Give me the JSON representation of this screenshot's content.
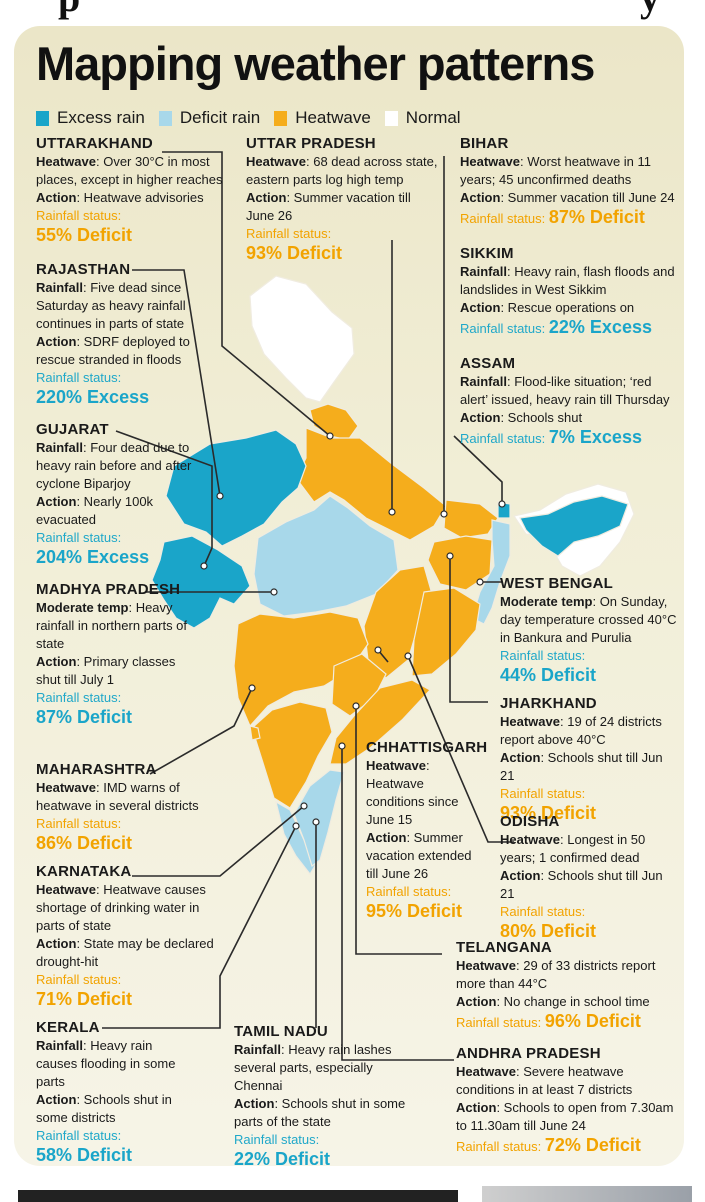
{
  "title": "Mapping weather patterns",
  "legend": [
    {
      "label": "Excess rain",
      "color": "#1aa5c9"
    },
    {
      "label": "Deficit rain",
      "color": "#a8d8ea"
    },
    {
      "label": "Heatwave",
      "color": "#f5ad1c"
    },
    {
      "label": "Normal",
      "color": "#ffffff"
    }
  ],
  "colors": {
    "excess": "#1aa5c9",
    "deficit_rain": "#a8d8ea",
    "heatwave": "#f5ad1c",
    "normal": "#ffffff"
  },
  "states": {
    "uttarakhand": {
      "name": "UTTARAKHAND",
      "l1k": "Heatwave",
      "l1v": ": Over 30°C in most places, except in higher reaches",
      "l2k": "Action",
      "l2v": ": Heatwave advisories",
      "rlabel": "Rainfall status:",
      "status": "55% Deficit"
    },
    "rajasthan": {
      "name": "RAJASTHAN",
      "l1k": "Rainfall",
      "l1v": ": Five dead since Saturday as heavy rainfall continues in parts of state",
      "l2k": "Action",
      "l2v": ": SDRF deployed to rescue stranded in floods",
      "rlabel": "Rainfall status:",
      "status": "220% Excess"
    },
    "gujarat": {
      "name": "GUJARAT",
      "l1k": "Rainfall",
      "l1v": ": Four dead due to heavy rain before and after cyclone Biparjoy",
      "l2k": "Action",
      "l2v": ": Nearly 100k evacuated",
      "rlabel": "Rainfall status:",
      "status": "204% Excess"
    },
    "madhya_pradesh": {
      "name": "MADHYA PRADESH",
      "l1k": "Moderate temp",
      "l1v": ": Heavy rainfall in northern parts of state",
      "l2k": "Action",
      "l2v": ": Primary classes shut till July 1",
      "rlabel": "Rainfall status:",
      "status": "87% Deficit"
    },
    "maharashtra": {
      "name": "MAHARASHTRA",
      "l1k": "Heatwave",
      "l1v": ": IMD warns of heatwave in several districts",
      "rlabel": "Rainfall status:",
      "status": "86% Deficit"
    },
    "karnataka": {
      "name": "KARNATAKA",
      "l1k": "Heatwave",
      "l1v": ": Heatwave causes shortage of drinking water in parts of state",
      "l2k": "Action",
      "l2v": ": State may be declared drought-hit",
      "rlabel": "Rainfall status:",
      "status": "71% Deficit"
    },
    "kerala": {
      "name": "KERALA",
      "l1k": "Rainfall",
      "l1v": ": Heavy rain causes flooding in some parts",
      "l2k": "Action",
      "l2v": ": Schools shut in some districts",
      "rlabel": "Rainfall status:",
      "status": "58% Deficit"
    },
    "uttar_pradesh": {
      "name": "UTTAR PRADESH",
      "l1k": "Heatwave",
      "l1v": ": 68 dead across state, eastern parts log high temp",
      "l2k": "Action",
      "l2v": ": Summer vacation till June 26",
      "rlabel": "Rainfall status:",
      "status": "93% Deficit"
    },
    "bihar": {
      "name": "BIHAR",
      "l1k": "Heatwave",
      "l1v": ": Worst heatwave in 11 years; 45 unconfirmed deaths",
      "l2k": "Action",
      "l2v": ": Summer vacation till June 24",
      "rlabel": "Rainfall status:",
      "status": "87% Deficit"
    },
    "sikkim": {
      "name": "SIKKIM",
      "l1k": "Rainfall",
      "l1v": ": Heavy rain, flash floods and landslides in West Sikkim",
      "l2k": "Action",
      "l2v": ": Rescue operations on",
      "rlabel": "Rainfall status:",
      "status": "22% Excess"
    },
    "assam": {
      "name": "ASSAM",
      "l1k": "Rainfall",
      "l1v": ": Flood-like situation; ‘red alert’ issued, heavy rain till Thursday",
      "l2k": "Action",
      "l2v": ": Schools shut",
      "rlabel": "Rainfall status:",
      "status": "7% Excess"
    },
    "west_bengal": {
      "name": "WEST BENGAL",
      "l1k": "Moderate temp",
      "l1v": ": On Sunday, day temperature crossed 40°C in Bankura and Purulia",
      "rlabel": "Rainfall status:",
      "status": "44% Deficit"
    },
    "jharkhand": {
      "name": "JHARKHAND",
      "l1k": "Heatwave",
      "l1v": ": 19 of 24 districts report above 40°C",
      "l2k": "Action",
      "l2v": ": Schools shut till Jun 21",
      "rlabel": "Rainfall status:",
      "status": "93% Deficit"
    },
    "chhattisgarh": {
      "name": "CHHATTISGARH",
      "l1k": "Heatwave",
      "l1v": ": Heatwave conditions since June 15",
      "l2k": "Action",
      "l2v": ": Summer vacation extended till June 26",
      "rlabel": "Rainfall status:",
      "status": "95% Deficit"
    },
    "odisha": {
      "name": "ODISHA",
      "l1k": "Heatwave",
      "l1v": ": Longest in 50 years; 1 confirmed dead",
      "l2k": "Action",
      "l2v": ": Schools shut till Jun 21",
      "rlabel": "Rainfall status:",
      "status": "80% Deficit"
    },
    "telangana": {
      "name": "TELANGANA",
      "l1k": "Heatwave",
      "l1v": ": 29 of 33 districts report more than 44°C",
      "l2k": "Action",
      "l2v": ": No change in school time",
      "rlabel": "Rainfall status:",
      "status": "96% Deficit"
    },
    "tamil_nadu": {
      "name": "TAMIL NADU",
      "l1k": "Rainfall",
      "l1v": ": Heavy rain lashes several parts, especially Chennai",
      "l2k": "Action",
      "l2v": ": Schools shut in some parts of the state",
      "rlabel": "Rainfall status:",
      "status": "22% Deficit"
    },
    "andhra_pradesh": {
      "name": "ANDHRA PRADESH",
      "l1k": "Heatwave",
      "l1v": ": Severe heatwave conditions in at least 7 districts",
      "l2k": "Action",
      "l2v": ": Schools to open from 7.30am to 11.30am till June 24",
      "rlabel": "Rainfall status:",
      "status": "72% Deficit"
    }
  }
}
